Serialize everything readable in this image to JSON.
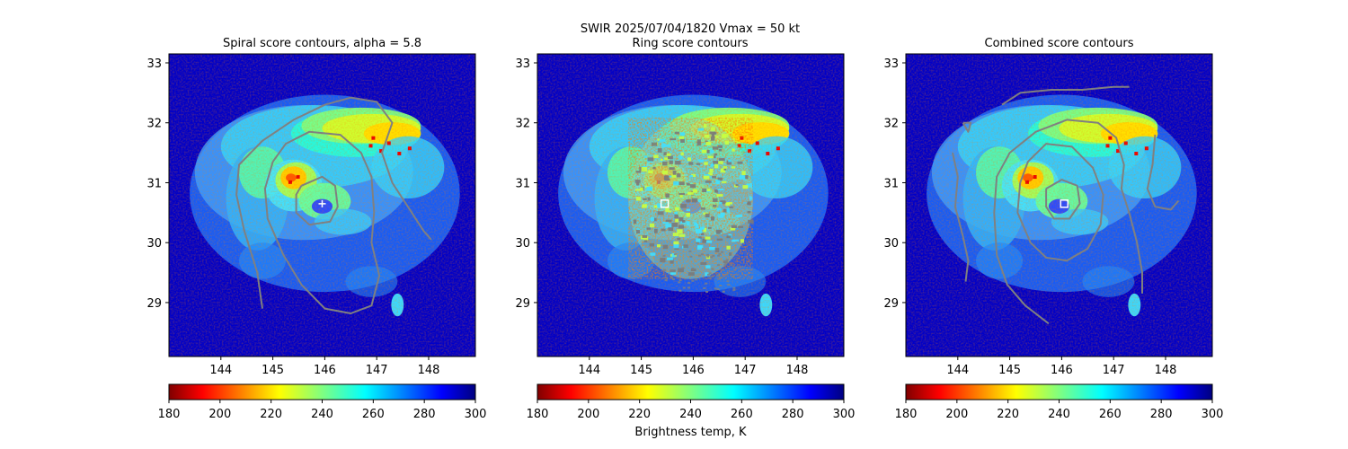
{
  "suptitle": {
    "line1": "SWIR  2025/07/04/1820    Vmax = 50 kt",
    "line2": "Ring score contours"
  },
  "chart_data": [
    {
      "type": "heatmap",
      "title": "Spiral score contours, alpha =  5.8",
      "xlim": [
        143.0,
        148.9
      ],
      "ylim": [
        28.1,
        33.15
      ],
      "xticks": [
        "144",
        "145",
        "146",
        "147",
        "148"
      ],
      "yticks": [
        "29",
        "30",
        "31",
        "32",
        "33"
      ],
      "center_marker": {
        "shape": "plus",
        "x": 145.95,
        "y": 30.65
      },
      "contours": [
        {
          "name": "",
          "color": "#808080",
          "points": [
            [
              144.8,
              28.9
            ],
            [
              144.7,
              29.5
            ],
            [
              144.45,
              30.2
            ],
            [
              144.3,
              30.8
            ],
            [
              144.35,
              31.3
            ],
            [
              144.8,
              31.7
            ],
            [
              145.4,
              32.05
            ],
            [
              146.0,
              32.3
            ],
            [
              146.5,
              32.42
            ],
            [
              147.0,
              32.35
            ],
            [
              147.3,
              32.0
            ],
            [
              147.1,
              31.5
            ],
            [
              147.3,
              31.0
            ],
            [
              147.6,
              30.6
            ],
            [
              147.9,
              30.2
            ],
            [
              148.05,
              30.05
            ]
          ]
        },
        {
          "name": "",
          "color": "#808080",
          "points": [
            [
              145.0,
              31.35
            ],
            [
              144.85,
              30.9
            ],
            [
              144.9,
              30.4
            ],
            [
              145.2,
              29.8
            ],
            [
              145.55,
              29.3
            ],
            [
              146.0,
              28.9
            ],
            [
              146.5,
              28.82
            ],
            [
              146.9,
              28.95
            ],
            [
              147.05,
              29.45
            ],
            [
              146.9,
              30.0
            ],
            [
              146.95,
              30.5
            ],
            [
              146.9,
              31.1
            ],
            [
              146.7,
              31.5
            ],
            [
              146.3,
              31.8
            ],
            [
              145.7,
              31.85
            ],
            [
              145.25,
              31.65
            ],
            [
              145.0,
              31.35
            ]
          ]
        },
        {
          "name": "",
          "color": "#808080",
          "points": [
            [
              145.55,
              30.95
            ],
            [
              145.95,
              31.1
            ],
            [
              146.2,
              30.95
            ],
            [
              146.25,
              30.6
            ],
            [
              146.1,
              30.35
            ],
            [
              145.7,
              30.3
            ],
            [
              145.45,
              30.5
            ],
            [
              145.45,
              30.8
            ],
            [
              145.55,
              30.95
            ]
          ]
        }
      ]
    },
    {
      "type": "heatmap",
      "title": "Ring score contours",
      "xlim": [
        143.0,
        148.9
      ],
      "ylim": [
        28.1,
        33.15
      ],
      "xticks": [
        "144",
        "145",
        "146",
        "147",
        "148"
      ],
      "yticks": [
        "29",
        "30",
        "31",
        "32",
        "33"
      ],
      "center_marker": {
        "shape": "square",
        "x": 145.45,
        "y": 30.65
      },
      "contours": []
    },
    {
      "type": "heatmap",
      "title": "Combined score contours",
      "xlim": [
        143.0,
        148.9
      ],
      "ylim": [
        28.1,
        33.15
      ],
      "xticks": [
        "144",
        "145",
        "146",
        "147",
        "148"
      ],
      "yticks": [
        "29",
        "30",
        "31",
        "32",
        "33"
      ],
      "center_marker": {
        "shape": "square",
        "x": 146.05,
        "y": 30.65
      },
      "contours": [
        {
          "name": "",
          "color": "#808080",
          "points": [
            [
              143.9,
              31.5
            ],
            [
              144.0,
              31.1
            ],
            [
              143.95,
              30.6
            ],
            [
              144.1,
              30.1
            ],
            [
              144.2,
              29.7
            ],
            [
              144.15,
              29.35
            ]
          ]
        },
        {
          "name": "",
          "color": "#808080",
          "points": [
            [
              145.75,
              28.65
            ],
            [
              145.3,
              28.95
            ],
            [
              144.95,
              29.3
            ],
            [
              144.75,
              29.8
            ],
            [
              144.7,
              30.5
            ],
            [
              144.75,
              31.1
            ],
            [
              145.0,
              31.5
            ],
            [
              145.5,
              31.85
            ],
            [
              146.1,
              32.05
            ],
            [
              146.7,
              32.0
            ],
            [
              147.05,
              31.75
            ],
            [
              147.2,
              31.3
            ],
            [
              147.15,
              30.9
            ],
            [
              147.3,
              30.5
            ],
            [
              147.45,
              30.0
            ],
            [
              147.55,
              29.5
            ],
            [
              147.55,
              29.15
            ]
          ]
        },
        {
          "name": "",
          "color": "#808080",
          "points": [
            [
              145.2,
              31.0
            ],
            [
              145.15,
              30.5
            ],
            [
              145.4,
              30.0
            ],
            [
              145.7,
              29.75
            ],
            [
              146.1,
              29.7
            ],
            [
              146.5,
              29.9
            ],
            [
              146.75,
              30.3
            ],
            [
              146.8,
              30.8
            ],
            [
              146.6,
              31.25
            ],
            [
              146.2,
              31.6
            ],
            [
              145.7,
              31.65
            ],
            [
              145.35,
              31.35
            ],
            [
              145.2,
              31.0
            ]
          ]
        },
        {
          "name": "",
          "color": "#808080",
          "points": [
            [
              145.7,
              30.9
            ],
            [
              146.0,
              31.05
            ],
            [
              146.3,
              30.95
            ],
            [
              146.35,
              30.65
            ],
            [
              146.15,
              30.4
            ],
            [
              145.85,
              30.4
            ],
            [
              145.7,
              30.6
            ],
            [
              145.7,
              30.9
            ]
          ]
        },
        {
          "name": "",
          "color": "#808080",
          "points": [
            [
              144.85,
              32.3
            ],
            [
              145.2,
              32.5
            ],
            [
              145.8,
              32.55
            ],
            [
              146.4,
              32.55
            ],
            [
              147.0,
              32.6
            ],
            [
              147.3,
              32.6
            ]
          ]
        },
        {
          "name": "",
          "color": "#808080",
          "points": [
            [
              147.8,
              31.8
            ],
            [
              147.75,
              31.3
            ],
            [
              147.65,
              30.9
            ],
            [
              147.8,
              30.6
            ],
            [
              148.1,
              30.55
            ],
            [
              148.25,
              30.7
            ]
          ]
        },
        {
          "name": "",
          "color": "#808080",
          "points": [
            [
              144.1,
              32.0
            ],
            [
              144.2,
              31.85
            ],
            [
              144.25,
              32.0
            ],
            [
              144.1,
              32.0
            ]
          ]
        }
      ]
    }
  ],
  "colorbar": {
    "cmap": "jet_r",
    "min": 180,
    "max": 300,
    "ticks": [
      "180",
      "200",
      "220",
      "240",
      "260",
      "280",
      "300"
    ],
    "label": "Brightness temp, K"
  },
  "storm": {
    "center_lon": 146.0,
    "center_lat": 30.65
  },
  "colors": {
    "contour": "#808080",
    "marker": "#ffffff",
    "background_cold": "#0000c8",
    "axis": "#000000"
  }
}
